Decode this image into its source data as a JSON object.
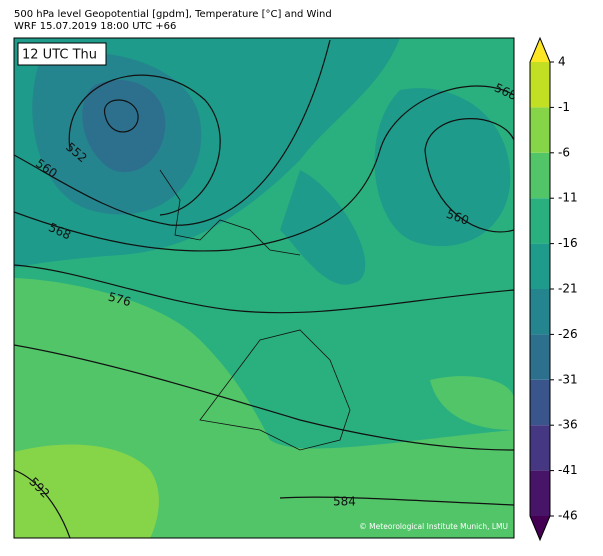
{
  "header": {
    "title": "500 hPa level Geopotential [gpdm], Temperature [°C] and Wind",
    "subtitle": "WRF 15.07.2019 18:00 UTC +66"
  },
  "map": {
    "time_label": "12 UTC Thu",
    "contour_labels": [
      "552",
      "560",
      "568",
      "576",
      "592",
      "584",
      "560",
      "568"
    ],
    "credit": "© Meteorological Institute Munich, LMU"
  },
  "colorbar": {
    "ticks": [
      -46,
      -41,
      -36,
      -31,
      -26,
      -21,
      -16,
      -11,
      -6,
      -1,
      4
    ],
    "colors": [
      "#481467",
      "#453781",
      "#3a548c",
      "#2d708e",
      "#25858e",
      "#1e9b8a",
      "#2ab07f",
      "#52c569",
      "#86d549",
      "#c2df23"
    ],
    "under_color": "#440154",
    "over_color": "#fde725"
  }
}
